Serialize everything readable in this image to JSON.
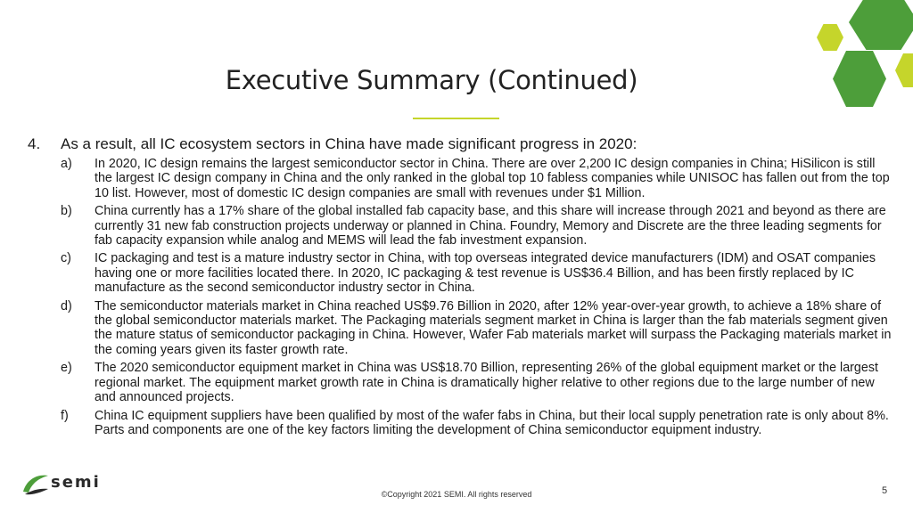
{
  "slide": {
    "title": "Executive Summary (Continued)",
    "page_number": "5",
    "copyright": "©Copyright 2021 SEMI. All rights reserved",
    "logo_text": "semi",
    "accent_colors": {
      "dark_green": "#4d9e3a",
      "lime_green": "#c5d52b"
    }
  },
  "summary": {
    "number": "4.",
    "text": "As a result, all IC ecosystem sectors in China have made significant progress in 2020:",
    "items": [
      {
        "label": "a)",
        "text": "In 2020, IC design remains the largest semiconductor sector in China. There are over 2,200 IC design companies in China; HiSilicon is still the largest IC design company in China and the only ranked in the global top 10 fabless companies while UNISOC has fallen out from the top 10  list.  However, most of domestic IC design companies are small with revenues under $1 Million."
      },
      {
        "label": "b)",
        "text": "China currently has a 17% share of the global installed fab capacity base, and this share will increase through 2021 and beyond as there are currently 31 new fab construction projects underway or planned in China. Foundry, Memory and Discrete are the three leading segments for fab capacity expansion while analog and MEMS will lead the fab investment expansion."
      },
      {
        "label": "c)",
        "text": "IC packaging and test is a mature industry sector in China, with top overseas integrated device manufacturers (IDM) and OSAT companies having one or more facilities located there. In 2020, IC packaging & test revenue is US$36.4 Billion, and has been firstly replaced by IC manufacture as the second semiconductor industry sector in China."
      },
      {
        "label": "d)",
        "text": "The semiconductor materials market in China reached US$9.76 Billion in 2020, after 12% year-over-year growth, to achieve a 18% share of the global semiconductor materials market. The Packaging materials segment market in China is larger than the fab materials segment given the mature status of semiconductor packaging in China. However, Wafer Fab materials market will surpass the Packaging materials market in the coming years given its faster growth rate."
      },
      {
        "label": "e)",
        "text": "The 2020 semiconductor equipment market in China was US$18.70 Billion, representing 26% of the global equipment market or the largest regional market. The equipment market growth rate in China is dramatically higher relative to other regions due to the large number of new and announced projects."
      },
      {
        "label": "f)",
        "text": "China IC equipment suppliers have been qualified by most of the wafer fabs in China, but their local supply penetration rate is only about 8%. Parts and components are one of the key factors limiting the development of China semiconductor equipment industry."
      }
    ]
  }
}
